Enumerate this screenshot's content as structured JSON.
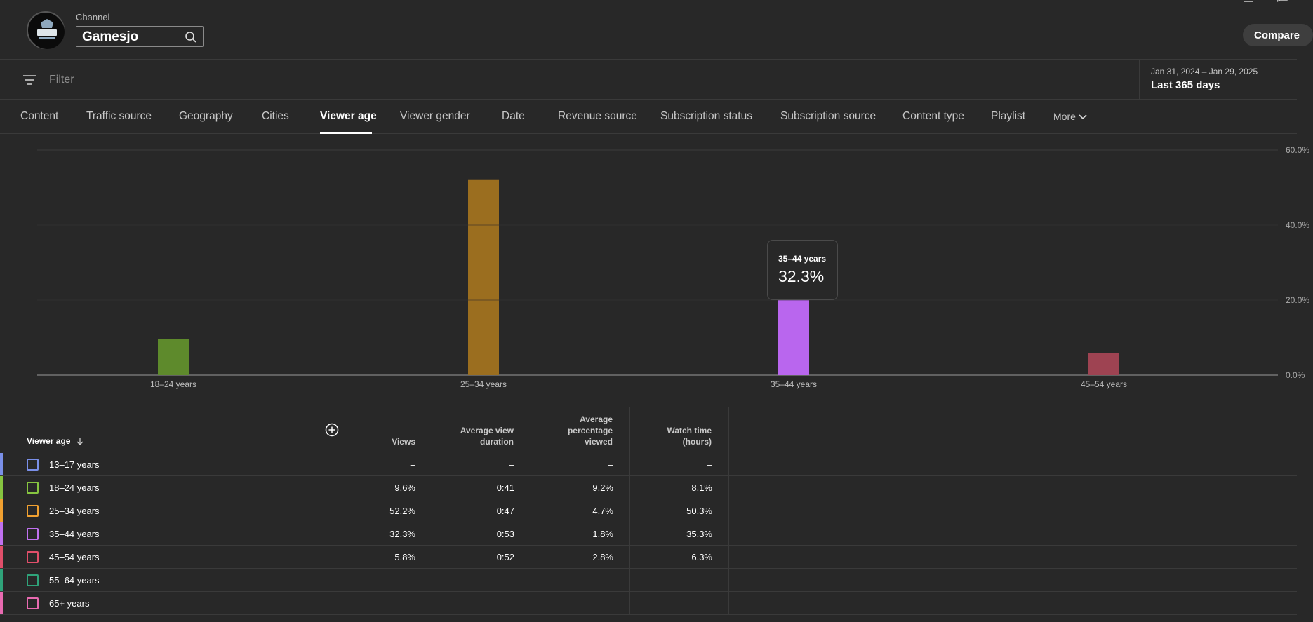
{
  "header": {
    "channel_label": "Channel",
    "channel_name": "Gamesjo",
    "logo_text": "GAMESJO",
    "compare_label": "Compare"
  },
  "filter": {
    "placeholder": "Filter",
    "date_range": "Jan 31, 2024 – Jan 29, 2025",
    "date_label": "Last 365 days"
  },
  "tabs": [
    {
      "label": "Content"
    },
    {
      "label": "Traffic source"
    },
    {
      "label": "Geography"
    },
    {
      "label": "Cities"
    },
    {
      "label": "Viewer age",
      "active": true
    },
    {
      "label": "Viewer gender"
    },
    {
      "label": "Date"
    },
    {
      "label": "Revenue source"
    },
    {
      "label": "Subscription status"
    },
    {
      "label": "Subscription source"
    },
    {
      "label": "Content type"
    },
    {
      "label": "Playlist"
    },
    {
      "label": "More"
    }
  ],
  "chart_data": {
    "type": "bar",
    "categories": [
      "18–24 years",
      "25–34 years",
      "35–44 years",
      "45–54 years"
    ],
    "values": [
      9.6,
      52.2,
      32.3,
      5.8
    ],
    "colors": [
      "#5e8a2c",
      "#9b6e1f",
      "#b966ee",
      "#9e4352"
    ],
    "y_ticks": [
      "60.0%",
      "40.0%",
      "20.0%",
      "0.0%"
    ],
    "ylim": [
      0,
      60
    ],
    "grid": true,
    "tooltip": {
      "label": "35–44 years",
      "value": "32.3%"
    }
  },
  "table": {
    "headers": {
      "first": "Viewer age",
      "views": "Views",
      "avd": [
        "Average view",
        "duration"
      ],
      "apv": [
        "Average",
        "percentage",
        "viewed"
      ],
      "watch": [
        "Watch time",
        "(hours)"
      ]
    },
    "rows": [
      {
        "label": "13–17 years",
        "color": "#7a8fe8",
        "views": "–",
        "avd": "–",
        "apv": "–",
        "watch": "–"
      },
      {
        "label": "18–24 years",
        "color": "#86c440",
        "views": "9.6%",
        "avd": "0:41",
        "apv": "9.2%",
        "watch": "8.1%"
      },
      {
        "label": "25–34 years",
        "color": "#f0a030",
        "views": "52.2%",
        "avd": "0:47",
        "apv": "4.7%",
        "watch": "50.3%"
      },
      {
        "label": "35–44 years",
        "color": "#c071f0",
        "views": "32.3%",
        "avd": "0:53",
        "apv": "1.8%",
        "watch": "35.3%"
      },
      {
        "label": "45–54 years",
        "color": "#e04f6a",
        "views": "5.8%",
        "avd": "0:52",
        "apv": "2.8%",
        "watch": "6.3%"
      },
      {
        "label": "55–64 years",
        "color": "#2fa37a",
        "views": "–",
        "avd": "–",
        "apv": "–",
        "watch": "–"
      },
      {
        "label": "65+ years",
        "color": "#e86ab0",
        "views": "–",
        "avd": "–",
        "apv": "–",
        "watch": "–"
      }
    ]
  }
}
